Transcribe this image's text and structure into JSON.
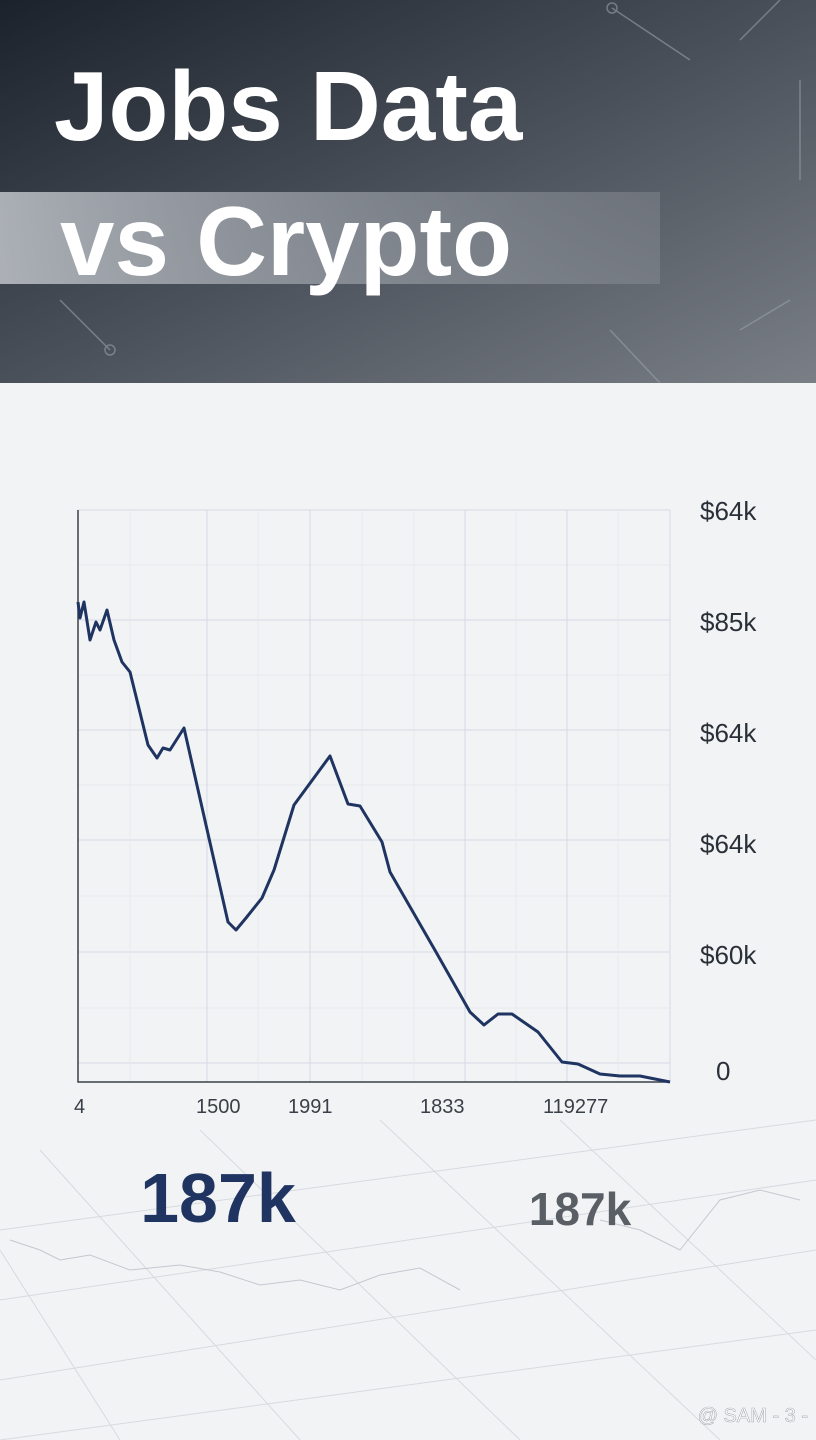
{
  "header": {
    "title_line_1": "Jobs Data",
    "title_line_2": "vs Crypto"
  },
  "chart": {
    "y_labels": [
      "$64k",
      "$85k",
      "$64k",
      "$64k",
      "$60k",
      "0"
    ],
    "x_labels": [
      "4",
      "1500",
      "1991",
      "1833",
      "119277"
    ]
  },
  "stats": {
    "primary": "187k",
    "secondary": "187k"
  },
  "watermark": "@ SAM - 3 -"
}
